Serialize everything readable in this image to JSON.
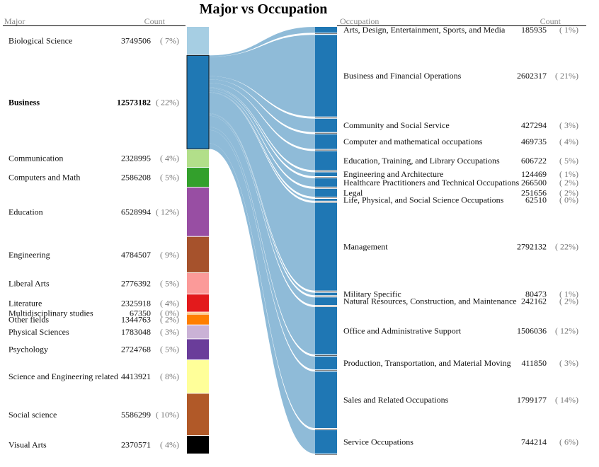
{
  "chart_data": {
    "type": "sankey",
    "title": "Major vs Occupation",
    "left_headers": {
      "name": "Major",
      "count": "Count"
    },
    "right_headers": {
      "name": "Occupation",
      "count": "Count"
    },
    "highlighted_major": "Business",
    "colors": {
      "link": "#8fbbd8",
      "occupation_bar": "#1f77b4",
      "highlight_stroke": "#1a1a1a",
      "separator": "#000000"
    },
    "majors": [
      {
        "name": "Biological Science",
        "count": "3749506",
        "pct": "( 7%)",
        "value": 3749506,
        "color": "#a6cee3"
      },
      {
        "name": "Business",
        "count": "12573182",
        "pct": "( 22%)",
        "value": 12573182,
        "color": "#1f78b4"
      },
      {
        "name": "Communication",
        "count": "2328995",
        "pct": "( 4%)",
        "value": 2328995,
        "color": "#b2df8a"
      },
      {
        "name": "Computers and Math",
        "count": "2586208",
        "pct": "( 5%)",
        "value": 2586208,
        "color": "#33a02c"
      },
      {
        "name": "Education",
        "count": "6528994",
        "pct": "( 12%)",
        "value": 6528994,
        "color": "#984ea3"
      },
      {
        "name": "Engineering",
        "count": "4784507",
        "pct": "( 9%)",
        "value": 4784507,
        "color": "#a6522c"
      },
      {
        "name": "Liberal Arts",
        "count": "2776392",
        "pct": "( 5%)",
        "value": 2776392,
        "color": "#fb9a99"
      },
      {
        "name": "Literature",
        "count": "2325918",
        "pct": "( 4%)",
        "value": 2325918,
        "color": "#e31a1c"
      },
      {
        "name": "Multidisciplinary studies",
        "count": "67350",
        "pct": "( 0%)",
        "value": 67350,
        "color": "#fdbf6f"
      },
      {
        "name": "Other fields",
        "count": "1344763",
        "pct": "( 2%)",
        "value": 1344763,
        "color": "#ff7f00"
      },
      {
        "name": "Physical Sciences",
        "count": "1783048",
        "pct": "( 3%)",
        "value": 1783048,
        "color": "#cab2d6"
      },
      {
        "name": "Psychology",
        "count": "2724768",
        "pct": "( 5%)",
        "value": 2724768,
        "color": "#6a3d9a"
      },
      {
        "name": "Science and Engineering related",
        "count": "4413921",
        "pct": "( 8%)",
        "value": 4413921,
        "color": "#ffff99"
      },
      {
        "name": "Social science",
        "count": "5586299",
        "pct": "( 10%)",
        "value": 5586299,
        "color": "#b15928"
      },
      {
        "name": "Visual Arts",
        "count": "2370571",
        "pct": "( 4%)",
        "value": 2370571,
        "color": "#000000"
      }
    ],
    "occupations": [
      {
        "name": "Arts, Design, Entertainment, Sports, and Media",
        "count": "185935",
        "pct": "( 1%)",
        "value": 185935
      },
      {
        "name": "Business and Financial Operations",
        "count": "2602317",
        "pct": "( 21%)",
        "value": 2602317
      },
      {
        "name": "Community and Social Service",
        "count": "427294",
        "pct": "( 3%)",
        "value": 427294
      },
      {
        "name": "Computer and mathematical occupations",
        "count": "469735",
        "pct": "( 4%)",
        "value": 469735
      },
      {
        "name": "Education, Training, and Library Occupations",
        "count": "606722",
        "pct": "( 5%)",
        "value": 606722
      },
      {
        "name": "Engineering and Architecture",
        "count": "124469",
        "pct": "( 1%)",
        "value": 124469
      },
      {
        "name": "Healthcare Practitioners and Technical Occupations",
        "count": "266500",
        "pct": "( 2%)",
        "value": 266500
      },
      {
        "name": "Legal",
        "count": "251656",
        "pct": "( 2%)",
        "value": 251656
      },
      {
        "name": "Life, Physical, and Social Science Occupations",
        "count": "62510",
        "pct": "( 0%)",
        "value": 62510
      },
      {
        "name": "Management",
        "count": "2792132",
        "pct": "( 22%)",
        "value": 2792132
      },
      {
        "name": "Military Specific",
        "count": "80473",
        "pct": "( 1%)",
        "value": 80473
      },
      {
        "name": "Natural Resources, Construction, and Maintenance",
        "count": "242162",
        "pct": "( 2%)",
        "value": 242162
      },
      {
        "name": "Office and Administrative Support",
        "count": "1506036",
        "pct": "( 12%)",
        "value": 1506036
      },
      {
        "name": "Production, Transportation, and Material Moving",
        "count": "411850",
        "pct": "( 3%)",
        "value": 411850
      },
      {
        "name": "Sales and Related Occupations",
        "count": "1799177",
        "pct": "( 14%)",
        "value": 1799177
      },
      {
        "name": "Service Occupations",
        "count": "744214",
        "pct": "( 6%)",
        "value": 744214
      }
    ]
  }
}
